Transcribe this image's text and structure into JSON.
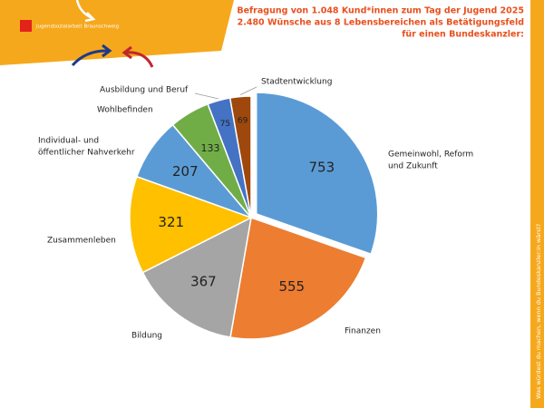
{
  "chart_data": {
    "type": "pie",
    "title": [
      "Befragung von 1.048 Kund*innen zum Tag der Jugend 2025",
      "2.480 Wünsche aus 8 Lebensbereichen als Betätigungsfeld",
      "für einen Bundeskanzler:"
    ],
    "logo_text": "Jugendsozialarbeit Braunschweig",
    "side_text": "Was würdest du machen, wenn du Bundeskanzler:in wärst?",
    "categories": [
      [
        "Gemeinwohl, Reform",
        "und Zukunft"
      ],
      [
        "Finanzen"
      ],
      [
        "Bildung"
      ],
      [
        "Zusammenleben"
      ],
      [
        "Individual- und",
        "öffentlicher Nahverkehr"
      ],
      [
        "Wohlbefinden"
      ],
      [
        "Ausbildung und Beruf"
      ],
      [
        "Stadtentwicklung"
      ]
    ],
    "values": [
      753,
      555,
      367,
      321,
      207,
      133,
      75,
      69
    ],
    "colors": [
      "#5b9bd5",
      "#ed7d31",
      "#a5a5a5",
      "#ffc000",
      "#5b9bd5",
      "#70ad47",
      "#4472c4",
      "#9e480e"
    ]
  }
}
